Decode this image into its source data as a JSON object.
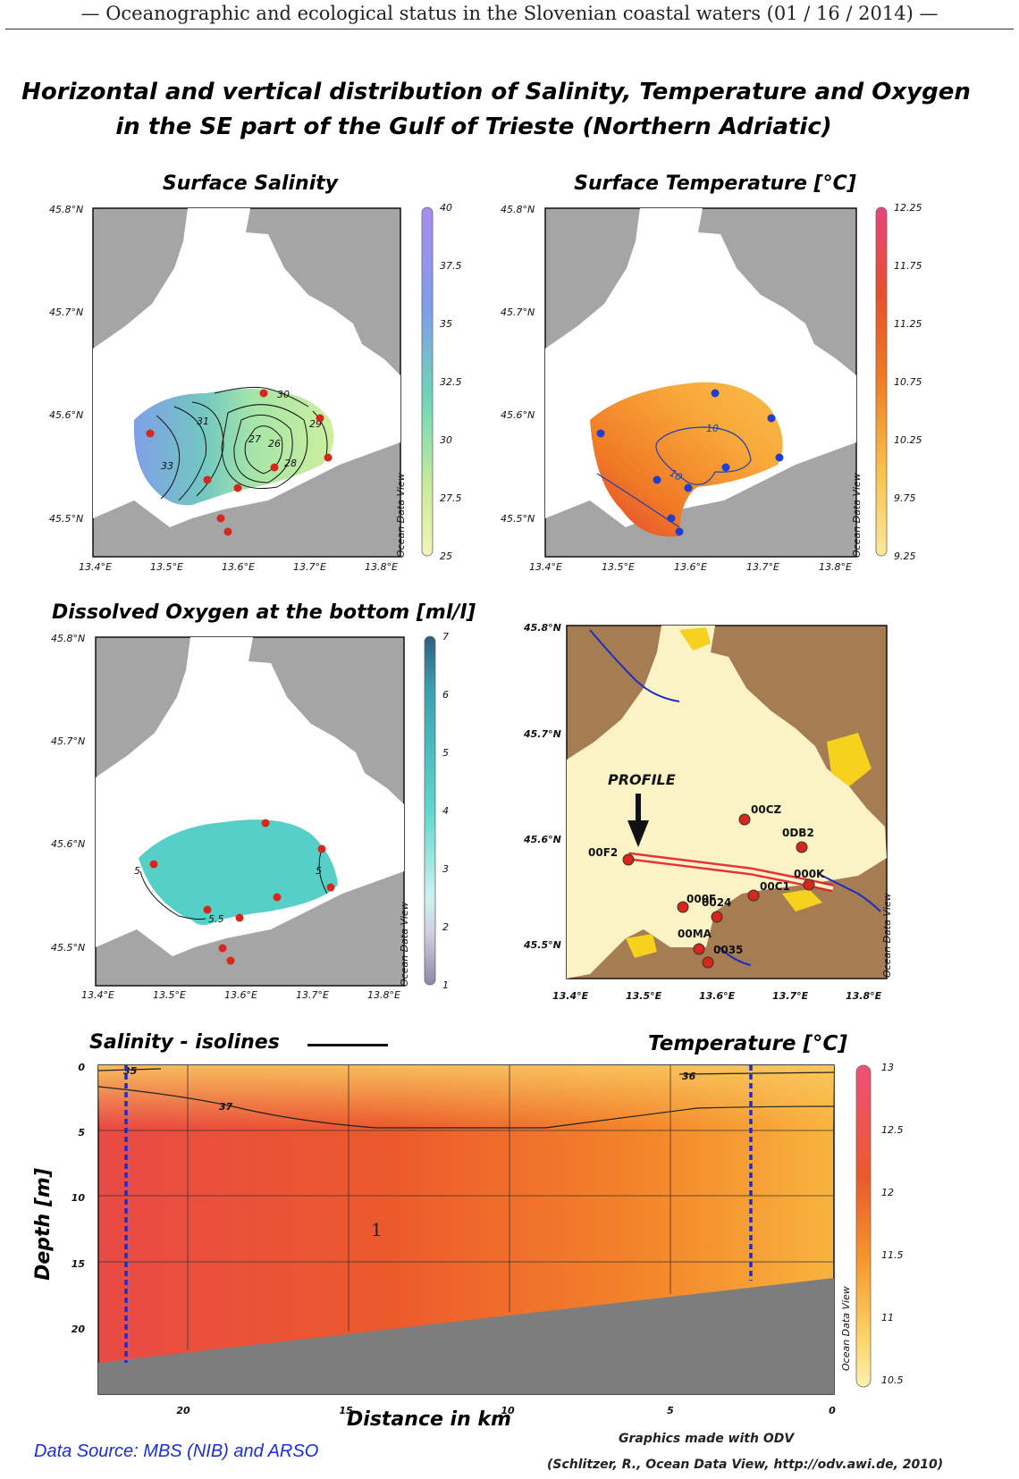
{
  "header": "— Oceanographic and ecological status in the Slovenian coastal waters (01 / 16 / 2014) —",
  "figure": {
    "title_line1": "Horizontal and vertical distribution of Salinity, Temperature and Oxygen",
    "title_line2": "in the SE part of the Gulf of Trieste (Northern Adriatic)",
    "lon_ticks": [
      "13.4°E",
      "13.5°E",
      "13.6°E",
      "13.7°E",
      "13.8°E"
    ],
    "lat_ticks": [
      "45.8°N",
      "45.7°N",
      "45.6°N",
      "45.5°N"
    ],
    "odv_tag": "Ocean Data View",
    "panels": {
      "salinity": {
        "title": "Surface Salinity",
        "colorbar_ticks": [
          "40",
          "37.5",
          "35",
          "32.5",
          "30",
          "27.5",
          "25"
        ],
        "contour_labels": [
          "30",
          "31",
          "29",
          "27",
          "26",
          "28",
          "33"
        ]
      },
      "temperature": {
        "title": "Surface Temperature [°C]",
        "colorbar_ticks": [
          "12.25",
          "11.75",
          "11.25",
          "10.75",
          "10.25",
          "9.75",
          "9.25"
        ],
        "contour_labels": [
          "10",
          "10"
        ]
      },
      "oxygen": {
        "title": "Dissolved Oxygen at the bottom [ml/l]",
        "colorbar_ticks": [
          "7",
          "6",
          "5",
          "4",
          "3",
          "2",
          "1"
        ],
        "contour_labels": [
          "5",
          "5",
          "5.5"
        ]
      },
      "station_map": {
        "lon_ticks": [
          "13.4°E",
          "13.5°E",
          "13.6°E",
          "13.7°E",
          "13.8°E"
        ],
        "lat_ticks": [
          "45.8°N",
          "45.7°N",
          "45.6°N",
          "45.5°N"
        ],
        "profile_label": "PROFILE",
        "stations": [
          "00CZ",
          "0DB2",
          "00F2",
          "000K",
          "00C1",
          "000F",
          "0024",
          "00MA",
          "0035"
        ]
      }
    },
    "section": {
      "left_title": "Salinity - isolines",
      "right_title": "Temperature [°C]",
      "ylabel": "Depth [m]",
      "xlabel": "Distance in km",
      "depth_ticks": [
        "0",
        "5",
        "10",
        "15",
        "20"
      ],
      "distance_ticks": [
        "20",
        "15",
        "10",
        "5",
        "0"
      ],
      "colorbar_ticks": [
        "13",
        "12.5",
        "12",
        "11.5",
        "11",
        "10.5"
      ],
      "isoline_labels": [
        "35",
        "37",
        "36"
      ],
      "page_number": "1"
    },
    "data_source": "Data Source: MBS (NIB) and ARSO",
    "credit1": "Graphics made with ODV",
    "credit2": "(Schlitzer, R., Ocean Data View, http://odv.awi.de, 2010)"
  }
}
